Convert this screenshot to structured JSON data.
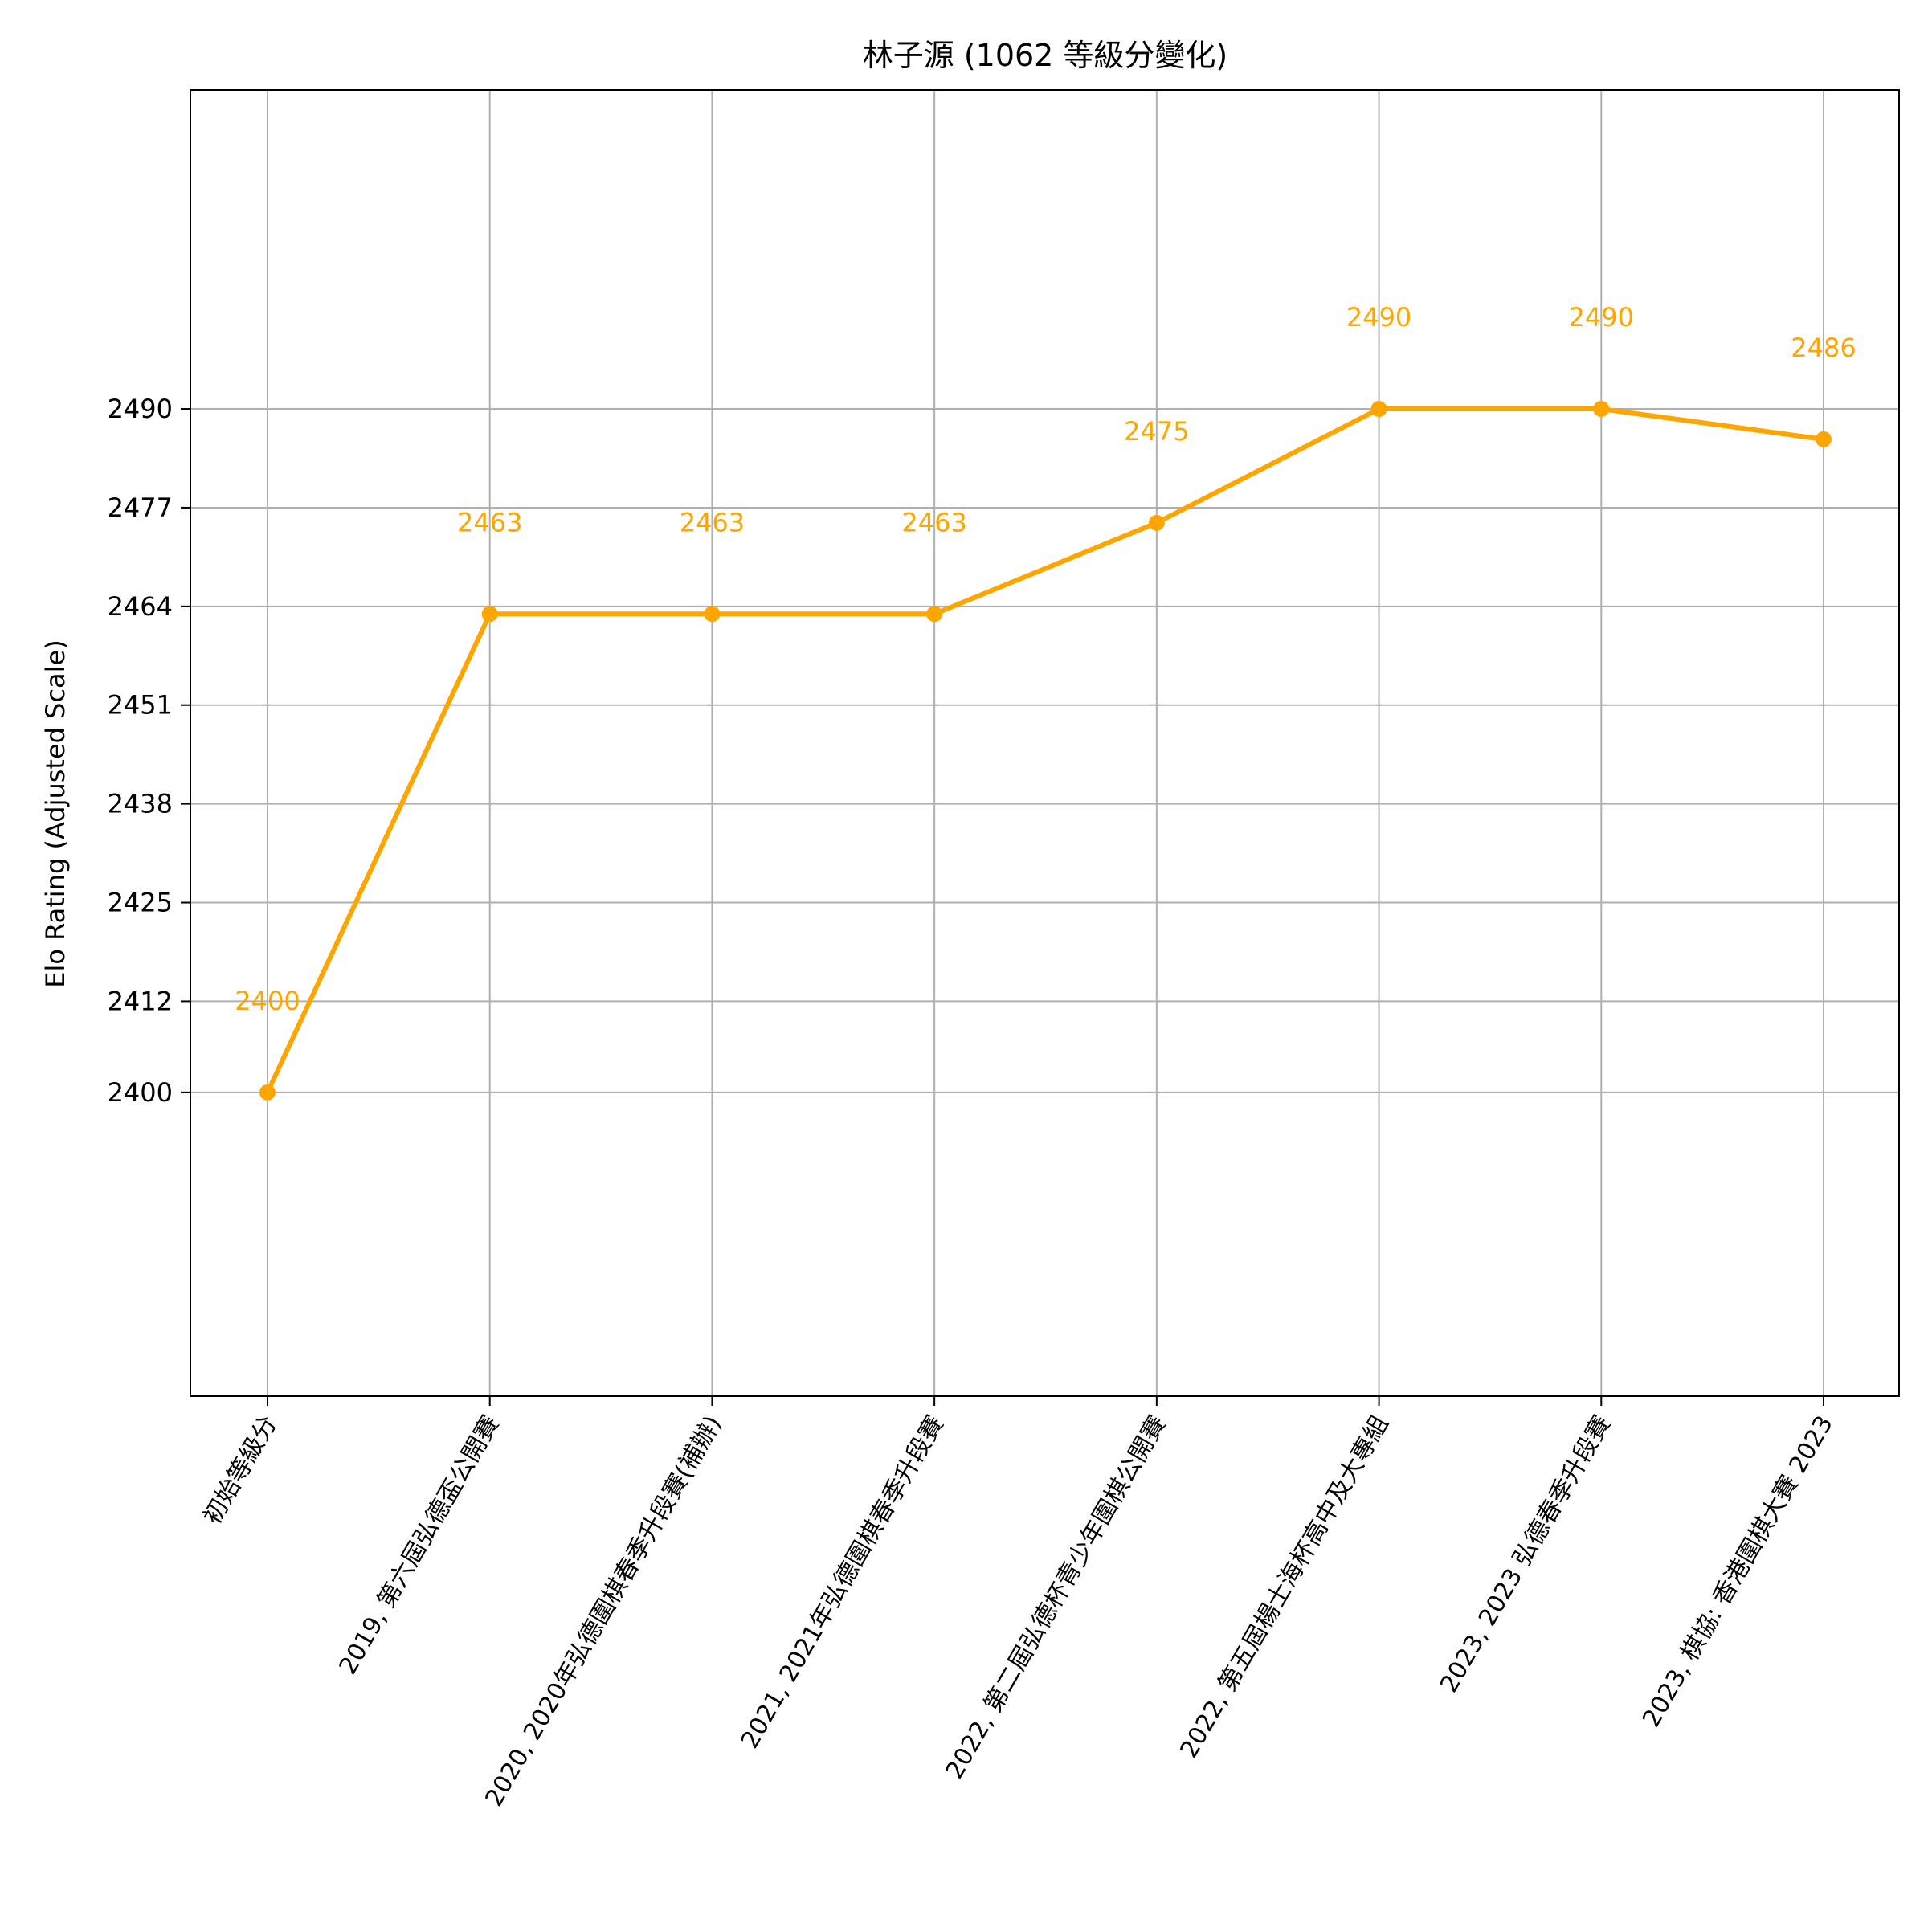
{
  "chart_data": {
    "type": "line",
    "title": "林子源 (1062 等級分變化)",
    "xlabel": "",
    "ylabel": "Elo Rating (Adjusted Scale)",
    "categories": [
      "初始等級分",
      "2019, 第六屆弘德盃公開賽",
      "2020, 2020年弘德圍棋春季升段賽(補辦)",
      "2021, 2021年弘德圍棋春季升段賽",
      "2022, 第二屆弘德杯青少年圍棋公開賽",
      "2022, 第五屆楊士海杯高中及大專組",
      "2023, 2023 弘德春季升段賽",
      "2023, 棋協: 香港圍棋大賽 2023"
    ],
    "series": [
      {
        "values": [
          2400,
          2463,
          2463,
          2463,
          2475,
          2490,
          2490,
          2486
        ],
        "color": "#ffa500"
      }
    ],
    "data_labels": [
      "2400",
      "2463",
      "2463",
      "2463",
      "2475",
      "2490",
      "2490",
      "2486"
    ],
    "yticks": [
      2400,
      2412,
      2425,
      2438,
      2451,
      2464,
      2477,
      2490
    ],
    "ytick_labels": [
      "2400",
      "2412",
      "2425",
      "2438",
      "2451",
      "2464",
      "2477",
      "2490"
    ],
    "ylim": [
      2360,
      2532
    ],
    "grid": true,
    "legend": "none",
    "line_color": "#ffa500",
    "grid_color": "#b0b0b0"
  }
}
